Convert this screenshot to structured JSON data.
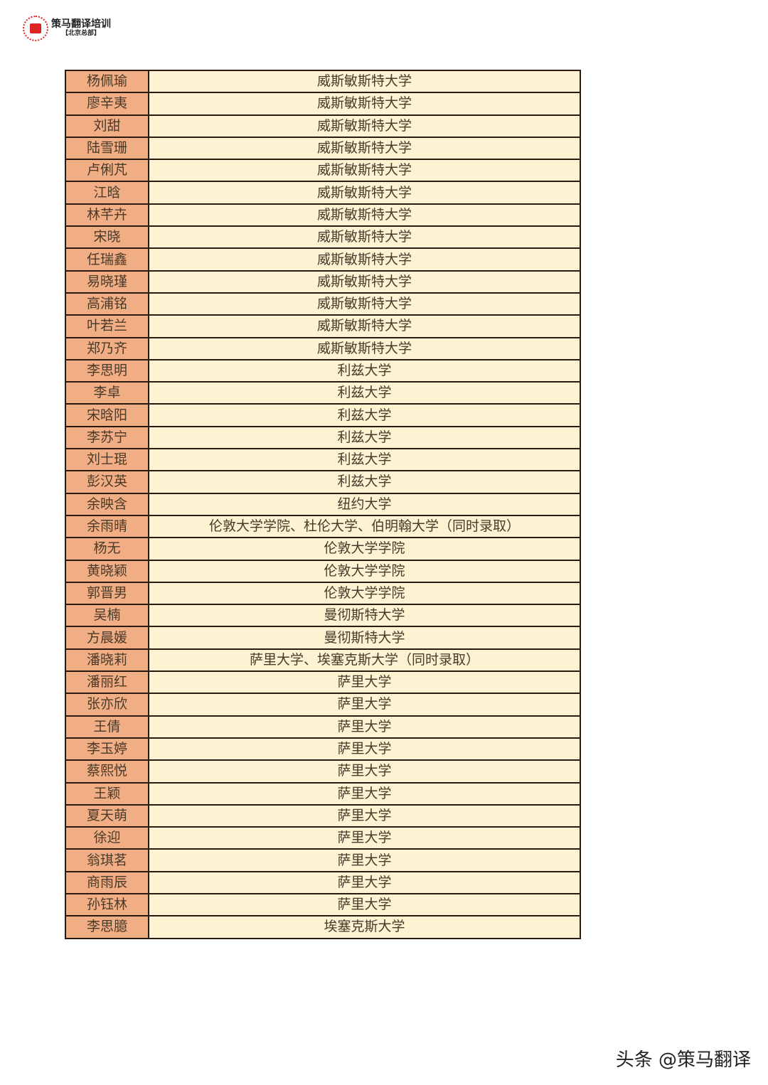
{
  "header": {
    "logo_main": "策马翻译培训",
    "logo_sub": "【北京总部】"
  },
  "rows": [
    {
      "name": "杨佩瑜",
      "school": "威斯敏斯特大学"
    },
    {
      "name": "廖辛夷",
      "school": "威斯敏斯特大学"
    },
    {
      "name": "刘甜",
      "school": "威斯敏斯特大学"
    },
    {
      "name": "陆雪珊",
      "school": "威斯敏斯特大学"
    },
    {
      "name": "卢俐芃",
      "school": "威斯敏斯特大学"
    },
    {
      "name": "江晗",
      "school": "威斯敏斯特大学"
    },
    {
      "name": "林芊卉",
      "school": "威斯敏斯特大学"
    },
    {
      "name": "宋晓",
      "school": "威斯敏斯特大学"
    },
    {
      "name": "任瑞鑫",
      "school": "威斯敏斯特大学"
    },
    {
      "name": "易晓瑾",
      "school": "威斯敏斯特大学"
    },
    {
      "name": "高浦铭",
      "school": "威斯敏斯特大学"
    },
    {
      "name": "叶若兰",
      "school": "威斯敏斯特大学"
    },
    {
      "name": "郑乃齐",
      "school": "威斯敏斯特大学"
    },
    {
      "name": "李思明",
      "school": "利兹大学"
    },
    {
      "name": "李卓",
      "school": "利兹大学"
    },
    {
      "name": "宋晗阳",
      "school": "利兹大学"
    },
    {
      "name": "李苏宁",
      "school": "利兹大学"
    },
    {
      "name": "刘士琨",
      "school": "利兹大学"
    },
    {
      "name": "彭汉英",
      "school": "利兹大学"
    },
    {
      "name": "余映含",
      "school": "纽约大学"
    },
    {
      "name": "余雨晴",
      "school": "伦敦大学学院、杜伦大学、伯明翰大学（同时录取）"
    },
    {
      "name": "杨无",
      "school": "伦敦大学学院"
    },
    {
      "name": "黄晓颖",
      "school": "伦敦大学学院"
    },
    {
      "name": "郭晋男",
      "school": "伦敦大学学院"
    },
    {
      "name": "吴楠",
      "school": "曼彻斯特大学"
    },
    {
      "name": "方晨媛",
      "school": "曼彻斯特大学"
    },
    {
      "name": "潘晓莉",
      "school": "萨里大学、埃塞克斯大学（同时录取）"
    },
    {
      "name": "潘丽红",
      "school": "萨里大学"
    },
    {
      "name": "张亦欣",
      "school": "萨里大学"
    },
    {
      "name": "王倩",
      "school": "萨里大学"
    },
    {
      "name": "李玉婷",
      "school": "萨里大学"
    },
    {
      "name": "蔡熙悦",
      "school": "萨里大学"
    },
    {
      "name": "王颖",
      "school": "萨里大学"
    },
    {
      "name": "夏天萌",
      "school": "萨里大学"
    },
    {
      "name": "徐迎",
      "school": "萨里大学"
    },
    {
      "name": "翁琪茗",
      "school": "萨里大学"
    },
    {
      "name": "商雨辰",
      "school": "萨里大学"
    },
    {
      "name": "孙钰林",
      "school": "萨里大学"
    },
    {
      "name": "李思臆",
      "school": "埃塞克斯大学"
    }
  ],
  "watermark": "头条 @策马翻译",
  "colors": {
    "name_cell": "#f1ae84",
    "school_cell": "#fdf3d2",
    "border": "#2a1a10"
  }
}
